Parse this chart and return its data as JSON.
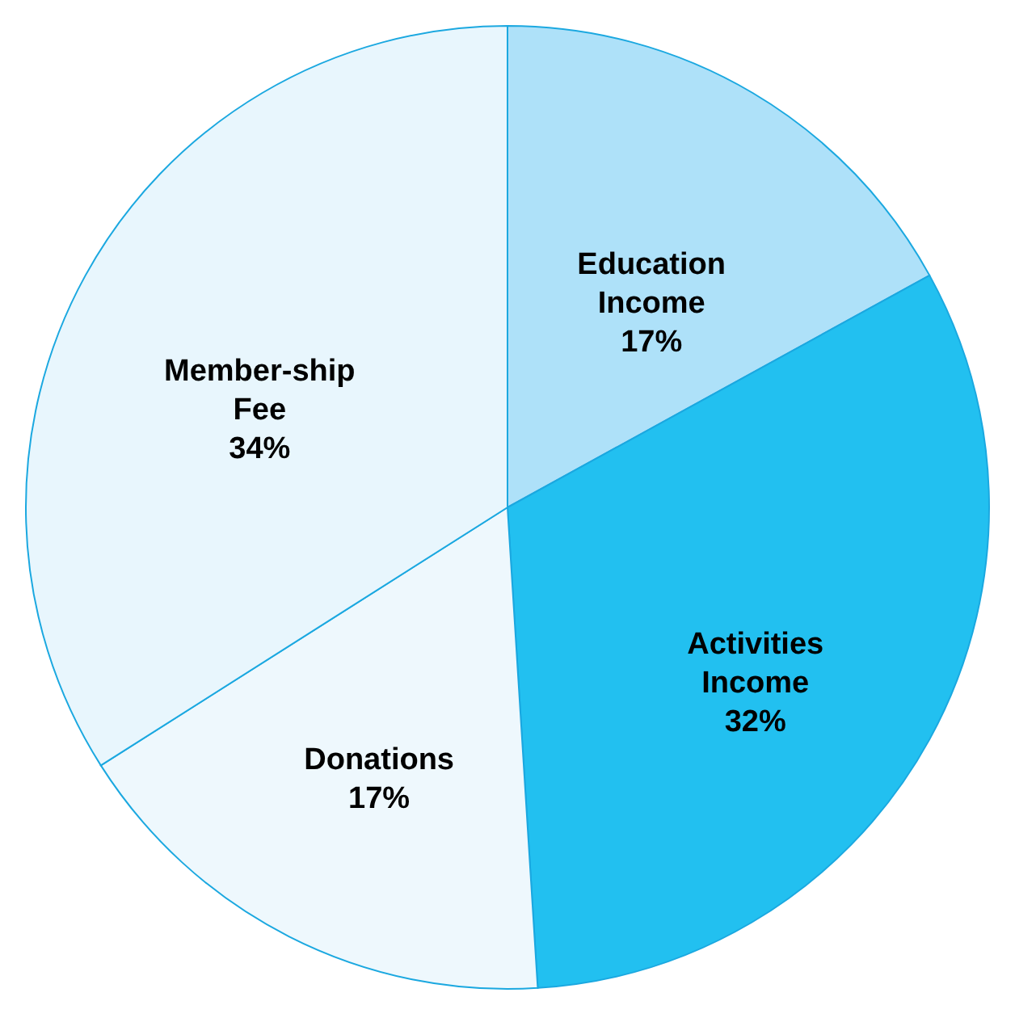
{
  "chart_data": {
    "type": "pie",
    "categories": [
      "Education Income",
      "Activities Income",
      "Donations",
      "Member-ship Fee"
    ],
    "values": [
      17,
      32,
      17,
      34
    ],
    "value_labels": [
      "17%",
      "32%",
      "17%",
      "34%"
    ],
    "colors": [
      "#aee1f9",
      "#22c0f0",
      "#eef8fd",
      "#e8f6fd"
    ]
  }
}
